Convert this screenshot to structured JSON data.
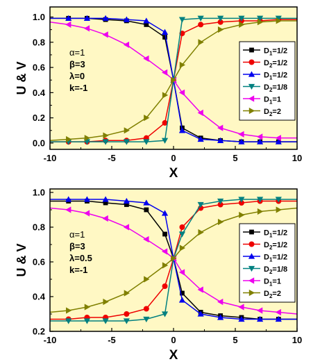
{
  "chart_data": [
    {
      "type": "line",
      "xlabel": "X",
      "ylabel": "U & V",
      "xlim": [
        -10,
        10
      ],
      "ylim": [
        -0.05,
        1.08
      ],
      "xticks": [
        "-10",
        "-5",
        "0",
        "5",
        "10"
      ],
      "yticks": [
        "0.0",
        "0.2",
        "0.4",
        "0.6",
        "0.8",
        "1.0"
      ],
      "ytick_values": [
        0.0,
        0.2,
        0.4,
        0.6,
        0.8,
        1.0
      ],
      "background": "#fff8c4",
      "params": [
        "α=1",
        "β=3",
        "λ=0",
        "k=-1"
      ],
      "legend_position": "right",
      "series": [
        {
          "name": "D1=1/2",
          "label_main": "D",
          "label_sub": "1",
          "label_rest": "=1/2",
          "color": "#000000",
          "marker": "square",
          "x": [
            -10,
            -8.5,
            -7,
            -5.5,
            -3.8,
            -2.2,
            -0.7,
            0,
            0.7,
            2.2,
            3.8,
            5.5,
            7,
            8.5,
            10
          ],
          "y": [
            0.99,
            0.99,
            0.99,
            0.98,
            0.97,
            0.94,
            0.84,
            0.5,
            0.12,
            0.04,
            0.02,
            0.01,
            0.01,
            0.01,
            0.01
          ]
        },
        {
          "name": "D2=1/2",
          "label_main": "D",
          "label_sub": "2",
          "label_rest": "=1/2",
          "color": "#ee0000",
          "marker": "circle",
          "x": [
            -10,
            -8.5,
            -7,
            -5.5,
            -3.8,
            -2.2,
            -0.7,
            0,
            0.7,
            2.2,
            3.8,
            5.5,
            7,
            8.5,
            10
          ],
          "y": [
            0.01,
            0.01,
            0.01,
            0.02,
            0.02,
            0.04,
            0.16,
            0.5,
            0.87,
            0.94,
            0.96,
            0.97,
            0.97,
            0.98,
            0.98
          ]
        },
        {
          "name": "D1=1/2",
          "label_main": "D",
          "label_sub": "1",
          "label_rest": "=1/2",
          "color": "#0000ee",
          "marker": "triangle-up",
          "x": [
            -10,
            -8.5,
            -7,
            -5.5,
            -3.8,
            -2.2,
            -0.7,
            0,
            0.7,
            2.2,
            3.8,
            5.5,
            7,
            8.5,
            10
          ],
          "y": [
            0.99,
            0.99,
            0.99,
            0.99,
            0.98,
            0.97,
            0.88,
            0.5,
            0.1,
            0.03,
            0.02,
            0.01,
            0.01,
            0.01,
            0.01
          ]
        },
        {
          "name": "D2=1/8",
          "label_main": "D",
          "label_sub": "2",
          "label_rest": "=1/8",
          "color": "#008080",
          "marker": "triangle-down",
          "x": [
            -10,
            -8.5,
            -7,
            -5.5,
            -3.8,
            -2.2,
            -0.7,
            0,
            0.7,
            2.2,
            3.8,
            5.5,
            7,
            8.5,
            10
          ],
          "y": [
            0.01,
            0.01,
            0.01,
            0.01,
            0.01,
            0.01,
            0.02,
            0.5,
            0.98,
            0.99,
            0.99,
            0.99,
            0.99,
            0.99,
            0.99
          ]
        },
        {
          "name": "D1=1",
          "label_main": "D",
          "label_sub": "1",
          "label_rest": "=1",
          "color": "#ee00ee",
          "marker": "triangle-left",
          "x": [
            -10,
            -8.5,
            -7,
            -5.5,
            -3.8,
            -2.2,
            -0.7,
            0,
            0.7,
            2.2,
            3.8,
            5.5,
            7,
            8.5,
            10
          ],
          "y": [
            0.96,
            0.94,
            0.91,
            0.86,
            0.78,
            0.67,
            0.56,
            0.5,
            0.4,
            0.24,
            0.12,
            0.07,
            0.05,
            0.04,
            0.04
          ]
        },
        {
          "name": "D2=2",
          "label_main": "D",
          "label_sub": "2",
          "label_rest": "=2",
          "color": "#808000",
          "marker": "triangle-right",
          "x": [
            -10,
            -8.5,
            -7,
            -5.5,
            -3.8,
            -2.2,
            -0.7,
            0,
            0.7,
            2.2,
            3.8,
            5.5,
            7,
            8.5,
            10
          ],
          "y": [
            0.02,
            0.03,
            0.04,
            0.06,
            0.1,
            0.2,
            0.38,
            0.5,
            0.62,
            0.8,
            0.9,
            0.94,
            0.96,
            0.97,
            0.97
          ]
        }
      ]
    },
    {
      "type": "line",
      "xlabel": "X",
      "ylabel": "U & V",
      "xlim": [
        -10,
        10
      ],
      "ylim": [
        0.2,
        1.02
      ],
      "xticks": [
        "-10",
        "-5",
        "0",
        "5",
        "10"
      ],
      "yticks": [
        "0.2",
        "0.4",
        "0.6",
        "0.8",
        "1.0"
      ],
      "ytick_values": [
        0.2,
        0.4,
        0.6,
        0.8,
        1.0
      ],
      "background": "#fff8c4",
      "params": [
        "α=1",
        "β=3",
        "λ=0.5",
        "k=-1"
      ],
      "legend_position": "right",
      "series": [
        {
          "name": "D1=1/2",
          "label_main": "D",
          "label_sub": "1",
          "label_rest": "=1/2",
          "color": "#000000",
          "marker": "square",
          "x": [
            -10,
            -8.5,
            -7,
            -5.5,
            -3.8,
            -2.2,
            -0.7,
            0,
            0.7,
            2.2,
            3.8,
            5.5,
            7,
            8.5,
            10
          ],
          "y": [
            0.95,
            0.95,
            0.95,
            0.94,
            0.93,
            0.9,
            0.76,
            0.62,
            0.42,
            0.31,
            0.29,
            0.28,
            0.27,
            0.27,
            0.27
          ]
        },
        {
          "name": "D2=1/2",
          "label_main": "D",
          "label_sub": "2",
          "label_rest": "=1/2",
          "color": "#ee0000",
          "marker": "circle",
          "x": [
            -10,
            -8.5,
            -7,
            -5.5,
            -3.8,
            -2.2,
            -0.7,
            0,
            0.7,
            2.2,
            3.8,
            5.5,
            7,
            8.5,
            10
          ],
          "y": [
            0.27,
            0.27,
            0.28,
            0.28,
            0.3,
            0.33,
            0.46,
            0.62,
            0.8,
            0.91,
            0.93,
            0.94,
            0.95,
            0.95,
            0.95
          ]
        },
        {
          "name": "D1=1/2",
          "label_main": "D",
          "label_sub": "1",
          "label_rest": "=1/2",
          "color": "#0000ee",
          "marker": "triangle-up",
          "x": [
            -10,
            -8.5,
            -7,
            -5.5,
            -3.8,
            -2.2,
            -0.7,
            0,
            0.7,
            2.2,
            3.8,
            5.5,
            7,
            8.5,
            10
          ],
          "y": [
            0.96,
            0.96,
            0.96,
            0.96,
            0.95,
            0.94,
            0.88,
            0.62,
            0.38,
            0.3,
            0.28,
            0.27,
            0.27,
            0.27,
            0.27
          ]
        },
        {
          "name": "D2=1/8",
          "label_main": "D",
          "label_sub": "2",
          "label_rest": "=1/8",
          "color": "#008080",
          "marker": "triangle-down",
          "x": [
            -10,
            -8.5,
            -7,
            -5.5,
            -3.8,
            -2.2,
            -0.7,
            0,
            0.7,
            2.2,
            3.8,
            5.5,
            7,
            8.5,
            10
          ],
          "y": [
            0.26,
            0.26,
            0.26,
            0.26,
            0.26,
            0.27,
            0.3,
            0.62,
            0.76,
            0.93,
            0.95,
            0.96,
            0.96,
            0.96,
            0.96
          ]
        },
        {
          "name": "D1=1",
          "label_main": "D",
          "label_sub": "1",
          "label_rest": "=1",
          "color": "#ee00ee",
          "marker": "triangle-left",
          "x": [
            -10,
            -8.5,
            -7,
            -5.5,
            -3.8,
            -2.2,
            -0.7,
            0,
            0.7,
            2.2,
            3.8,
            5.5,
            7,
            8.5,
            10
          ],
          "y": [
            0.91,
            0.9,
            0.88,
            0.85,
            0.8,
            0.73,
            0.66,
            0.62,
            0.54,
            0.44,
            0.37,
            0.34,
            0.32,
            0.31,
            0.3
          ]
        },
        {
          "name": "D2=2",
          "label_main": "D",
          "label_sub": "2",
          "label_rest": "=2",
          "color": "#808000",
          "marker": "triangle-right",
          "x": [
            -10,
            -8.5,
            -7,
            -5.5,
            -3.8,
            -2.2,
            -0.7,
            0,
            0.7,
            2.2,
            3.8,
            5.5,
            7,
            8.5,
            10
          ],
          "y": [
            0.31,
            0.32,
            0.34,
            0.37,
            0.42,
            0.5,
            0.58,
            0.62,
            0.68,
            0.77,
            0.83,
            0.87,
            0.89,
            0.9,
            0.91
          ]
        }
      ]
    }
  ]
}
